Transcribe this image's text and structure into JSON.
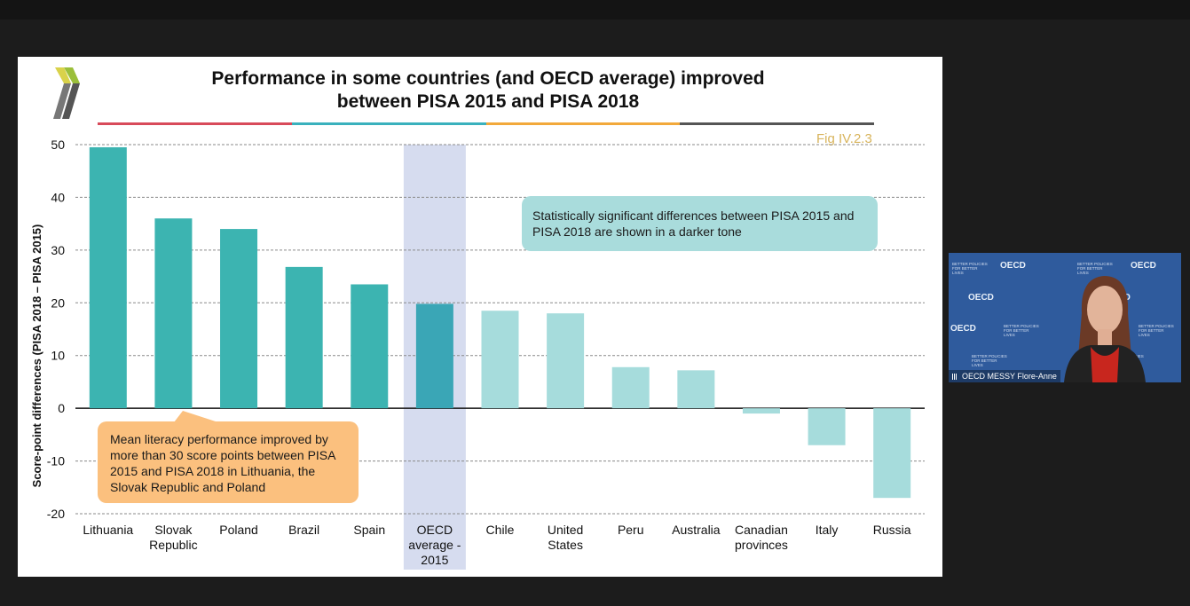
{
  "slide": {
    "title_line1": "Performance in some countries (and OECD average) improved",
    "title_line2": "between PISA 2015 and PISA 2018",
    "fig_ref": "Fig IV.2.3",
    "callout_significant": "Statistically significant differences between PISA 2015 and PISA 2018 are shown in a darker tone",
    "callout_literacy": "Mean literacy performance improved by more than 30 score points between PISA 2015 and PISA 2018 in Lithuania, the Slovak Republic and Poland",
    "rule_colors": [
      "#d84a5a",
      "#3ab1bd",
      "#f2a93b",
      "#555555"
    ]
  },
  "chart_data": {
    "type": "bar",
    "ylabel": "Score-point differences (PISA 2018 – PISA 2015)",
    "xlabel": "",
    "ylim": [
      -20,
      50
    ],
    "yticks": [
      50,
      40,
      30,
      20,
      10,
      0,
      -10,
      -20
    ],
    "grid": true,
    "categories": [
      [
        "Lithuania"
      ],
      [
        "Slovak",
        "Republic"
      ],
      [
        "Poland"
      ],
      [
        "Brazil"
      ],
      [
        "Spain"
      ],
      [
        "OECD",
        "average -",
        "2015"
      ],
      [
        "Chile"
      ],
      [
        "United",
        "States"
      ],
      [
        "Peru"
      ],
      [
        "Australia"
      ],
      [
        "Canadian",
        "provinces"
      ],
      [
        "Italy"
      ],
      [
        "Russia"
      ]
    ],
    "values": [
      49.5,
      36,
      34,
      26.8,
      23.5,
      19.8,
      18.5,
      18,
      7.8,
      7.2,
      -1,
      -7,
      -17
    ],
    "significant": [
      true,
      true,
      true,
      true,
      true,
      true,
      false,
      false,
      false,
      false,
      false,
      false,
      false
    ],
    "highlight_index": 5,
    "colors": {
      "significant": "#3cb4b1",
      "oecd": "#3aa6b6",
      "not_significant": "#a6dcdc",
      "highlight_band": "#d6dcef"
    }
  },
  "video": {
    "brand": "OECD",
    "tagline": "BETTER POLICIES FOR BETTER LIVES",
    "participant": "OECD MESSY Flore-Anne"
  }
}
